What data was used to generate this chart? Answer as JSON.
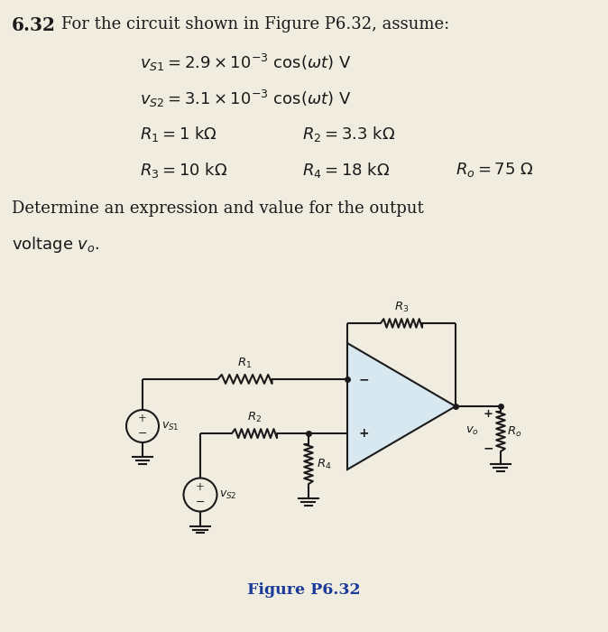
{
  "title_number": "6.32",
  "title_text": "For the circuit shown in Figure P6.32, assume:",
  "bg_color": "#f0ece0",
  "text_color": "#1a1a1a",
  "figure_label": "Figure P6.32",
  "figure_label_color": "#1a3a9a",
  "circuit_fill": "#d8e8f0"
}
